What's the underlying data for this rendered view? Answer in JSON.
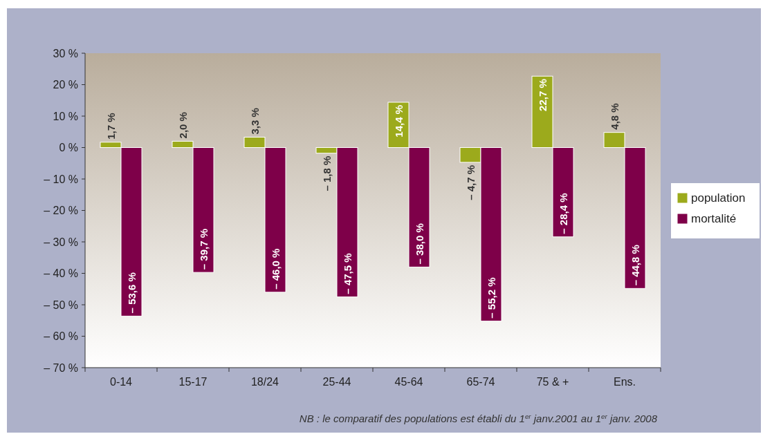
{
  "chart_data": {
    "type": "bar",
    "categories": [
      "0-14",
      "15-17",
      "18/24",
      "25-44",
      "45-64",
      "65-74",
      "75 & +",
      "Ens."
    ],
    "series": [
      {
        "name": "population",
        "color": "#9caa1c",
        "values": [
          1.7,
          2.0,
          3.3,
          -1.8,
          14.4,
          -4.7,
          22.7,
          4.8
        ],
        "value_labels": [
          "1,7 %",
          "2,0 %",
          "3,3 %",
          "– 1,8 %",
          "14,4 %",
          "– 4,7 %",
          "22,7 %",
          "4,8 %"
        ]
      },
      {
        "name": "mortalité",
        "color": "#7e0049",
        "values": [
          -53.6,
          -39.7,
          -46.0,
          -47.5,
          -38.0,
          -55.2,
          -28.4,
          -44.8
        ],
        "value_labels": [
          "– 53,6 %",
          "– 39,7 %",
          "– 46,0 %",
          "– 47,5 %",
          "– 38,0 %",
          "– 55,2 %",
          "– 28,4 %",
          "– 44,8 %"
        ]
      }
    ],
    "ylim": [
      -70,
      30
    ],
    "yticks": [
      {
        "value": 30,
        "label": "30 %"
      },
      {
        "value": 20,
        "label": "20 %"
      },
      {
        "value": 10,
        "label": "10 %"
      },
      {
        "value": 0,
        "label": "0 %"
      },
      {
        "value": -10,
        "label": "– 10 %"
      },
      {
        "value": -20,
        "label": "– 20 %"
      },
      {
        "value": -30,
        "label": "– 30 %"
      },
      {
        "value": -40,
        "label": "– 40 %"
      },
      {
        "value": -50,
        "label": "– 50 %"
      },
      {
        "value": -60,
        "label": "– 60 %"
      },
      {
        "value": -70,
        "label": "– 70 %"
      }
    ],
    "grid": false,
    "legend": "right",
    "annotations": [
      "NB : le comparatif des populations est établi du 1$^{er}$ janv.2001 au 1$^{er}$ janv. 2008"
    ]
  }
}
